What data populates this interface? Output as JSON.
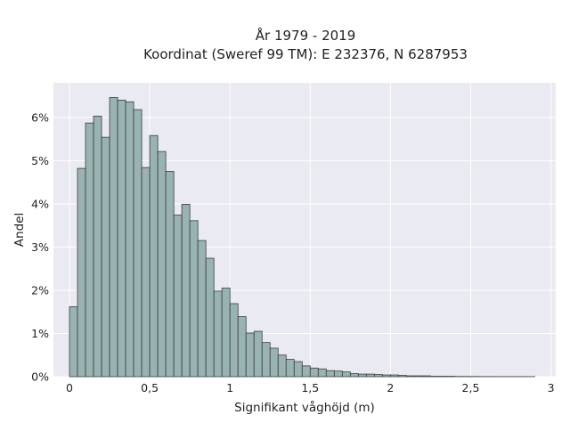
{
  "chart_data": {
    "type": "bar",
    "title_lines": [
      "År 1979 - 2019",
      "Koordinat (Sweref 99 TM): E 232376, N 6287953"
    ],
    "xlabel": "Signifikant våghöjd (m)",
    "ylabel": "Andel",
    "x_ticks": [
      0,
      0.5,
      1,
      1.5,
      2,
      2.5,
      3
    ],
    "x_tick_labels": [
      "0",
      "0,5",
      "1",
      "1,5",
      "2",
      "2,5",
      "3"
    ],
    "y_ticks": [
      0,
      1,
      2,
      3,
      4,
      5,
      6
    ],
    "y_tick_labels": [
      "0%",
      "1%",
      "2%",
      "3%",
      "4%",
      "5%",
      "6%"
    ],
    "xlim": [
      -0.1,
      3.03
    ],
    "ylim": [
      0,
      6.8
    ],
    "bin_width": 0.05,
    "bin_start": 0.0,
    "values": [
      1.62,
      4.82,
      5.87,
      6.03,
      5.54,
      6.46,
      6.4,
      6.36,
      6.18,
      4.84,
      5.58,
      5.21,
      4.75,
      3.74,
      3.99,
      3.61,
      3.15,
      2.74,
      1.98,
      2.05,
      1.69,
      1.39,
      1.01,
      1.05,
      0.79,
      0.66,
      0.5,
      0.4,
      0.35,
      0.25,
      0.2,
      0.18,
      0.14,
      0.13,
      0.11,
      0.07,
      0.06,
      0.06,
      0.05,
      0.04,
      0.04,
      0.03,
      0.02,
      0.02,
      0.02,
      0.01,
      0.01,
      0.01,
      0.005,
      0.005,
      0.004,
      0.003,
      0.003,
      0.002,
      0.002,
      0.002,
      0.002,
      0.001
    ],
    "grid": true,
    "legend": "none",
    "colors": {
      "bar_fill": "#99b3b2",
      "bar_edge": "#3a3f3f",
      "plot_bg": "#eaeaf2",
      "grid": "#ffffff"
    }
  }
}
